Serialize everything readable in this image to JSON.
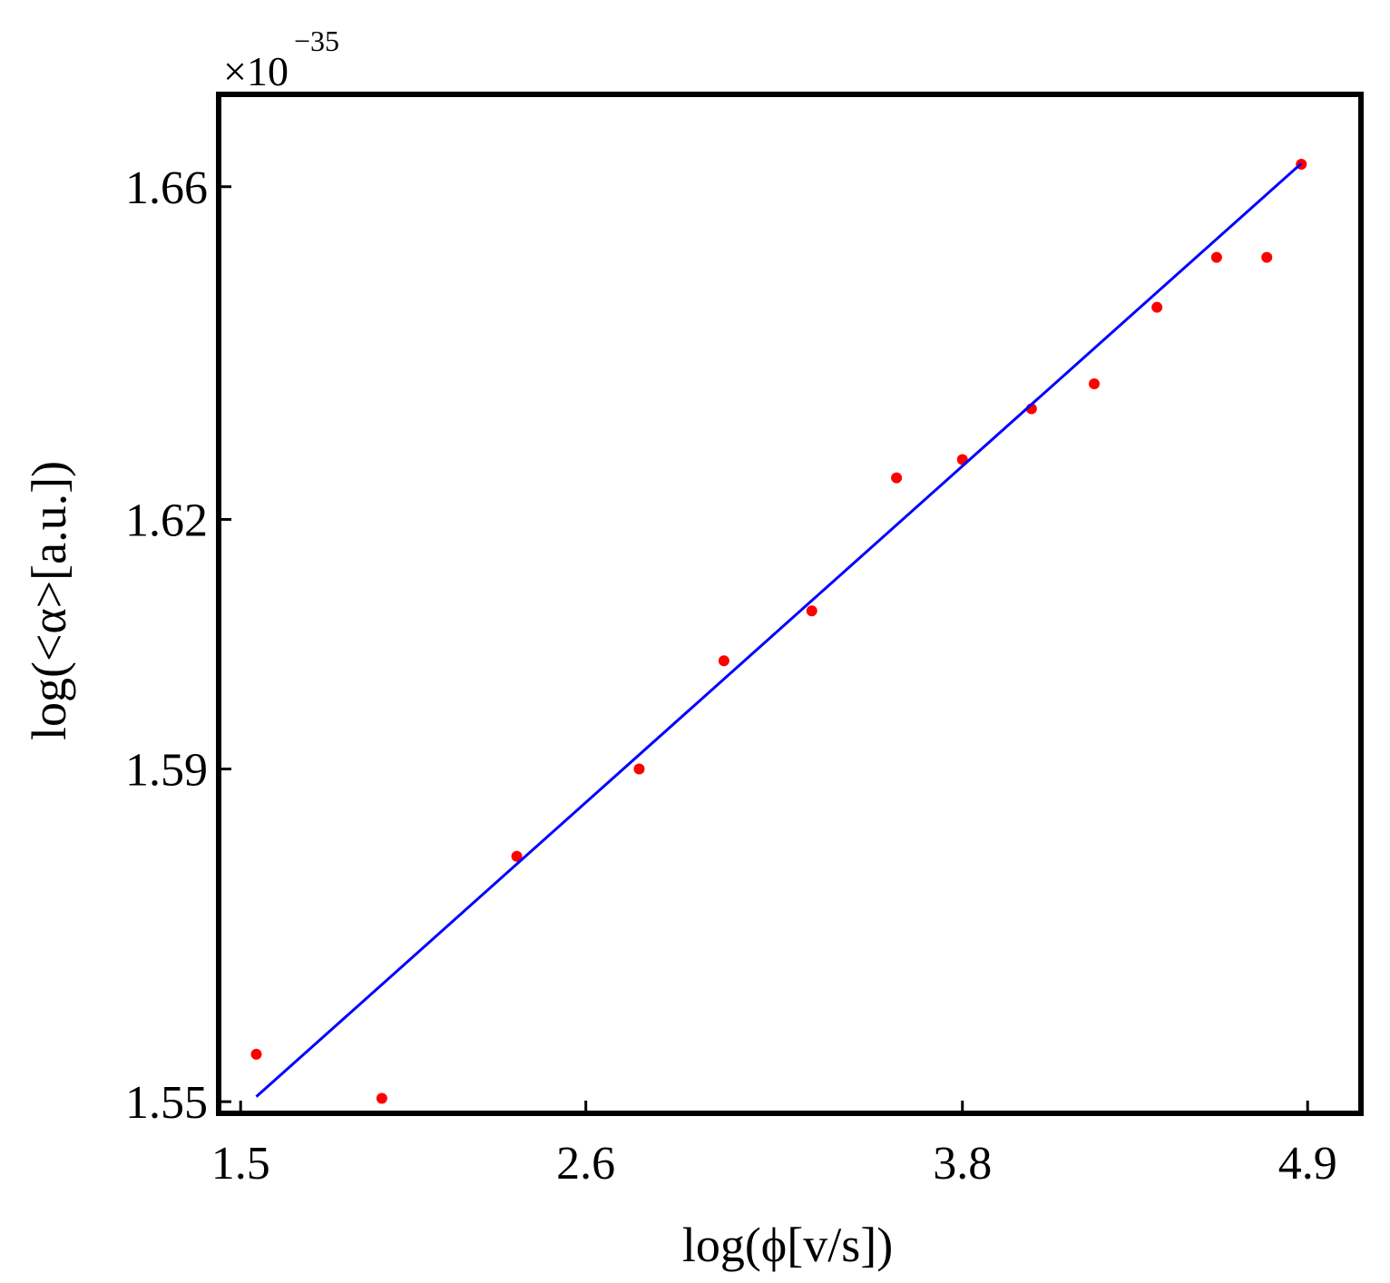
{
  "chart_data": {
    "type": "scatter",
    "title": "",
    "xlabel": "log(ϕ[v/s])",
    "ylabel": "log(<α>[a.u.])",
    "y_multiplier": {
      "base": "×10",
      "exponent": "−35"
    },
    "xlim": [
      1.43,
      5.07
    ],
    "ylim": [
      1.5486,
      1.6711
    ],
    "x_ticks": [
      1.5,
      2.6,
      3.8,
      4.9
    ],
    "x_tick_labels": [
      "1.5",
      "2.6",
      "3.8",
      "4.9"
    ],
    "y_ticks": [
      1.55,
      1.59,
      1.62,
      1.66
    ],
    "y_tick_labels": [
      "1.55",
      "1.59",
      "1.62",
      "1.66"
    ],
    "grid": false,
    "legend": "none",
    "series": [
      {
        "kind": "scatter",
        "color": "#ff0000",
        "points": [
          [
            1.55,
            1.5557
          ],
          [
            1.95,
            1.5504
          ],
          [
            2.38,
            1.5795
          ],
          [
            2.77,
            1.59
          ],
          [
            3.04,
            1.603
          ],
          [
            3.32,
            1.609
          ],
          [
            3.59,
            1.625
          ],
          [
            3.8,
            1.6272
          ],
          [
            4.02,
            1.6333
          ],
          [
            4.22,
            1.6363
          ],
          [
            4.42,
            1.6455
          ],
          [
            4.61,
            1.6515
          ],
          [
            4.77,
            1.6515
          ],
          [
            4.88,
            1.6627
          ]
        ]
      },
      {
        "kind": "line",
        "color": "#0000ff",
        "points": [
          [
            1.55,
            1.5506
          ],
          [
            4.88,
            1.6628
          ]
        ]
      }
    ]
  }
}
